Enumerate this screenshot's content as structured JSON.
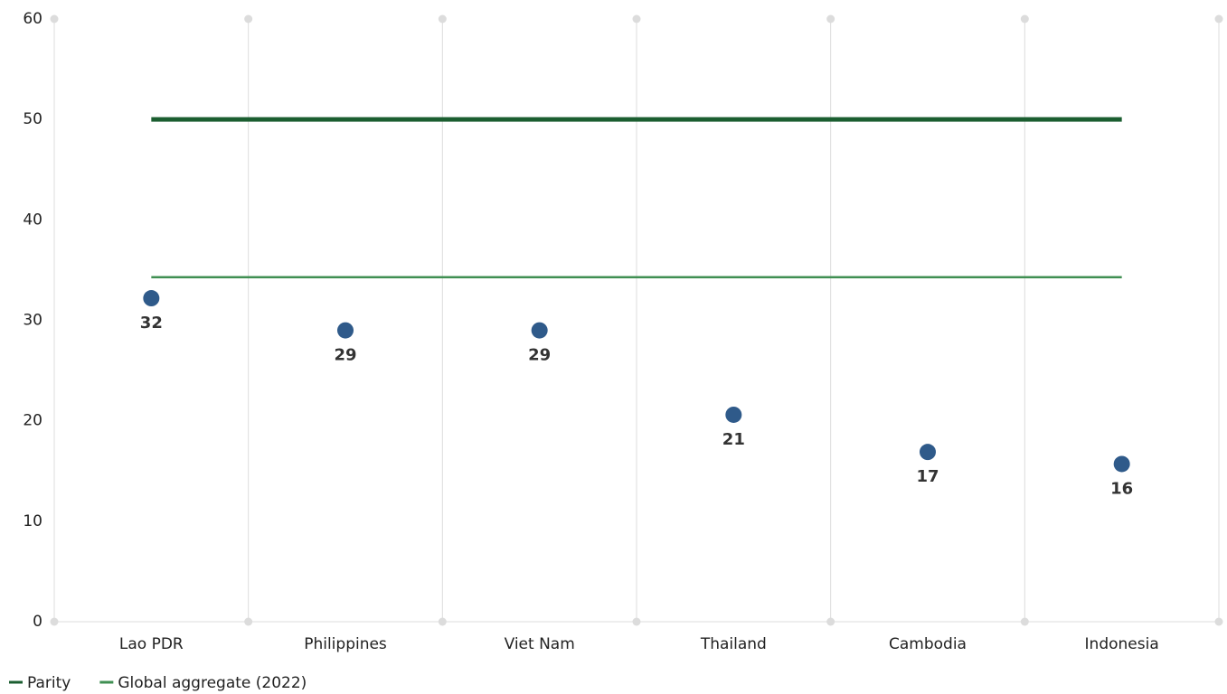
{
  "chart_data": {
    "type": "dot",
    "categories": [
      "Lao PDR",
      "Philippines",
      "Viet Nam",
      "Thailand",
      "Cambodia",
      "Indonesia"
    ],
    "values": [
      32.2,
      29,
      29,
      20.6,
      16.9,
      15.7
    ],
    "value_labels": [
      "32",
      "29",
      "29",
      "21",
      "17",
      "16"
    ],
    "color": "#2f5a8a",
    "reference_lines": [
      {
        "name": "Parity",
        "value": 50,
        "color": "#1b5e30"
      },
      {
        "name": "Global aggregate (2022)",
        "value": 34.3,
        "color": "#3f8f52"
      }
    ],
    "ylim": [
      0,
      60
    ],
    "yticks": [
      0,
      10,
      20,
      30,
      40,
      50,
      60
    ],
    "legend": "bottom-left"
  }
}
